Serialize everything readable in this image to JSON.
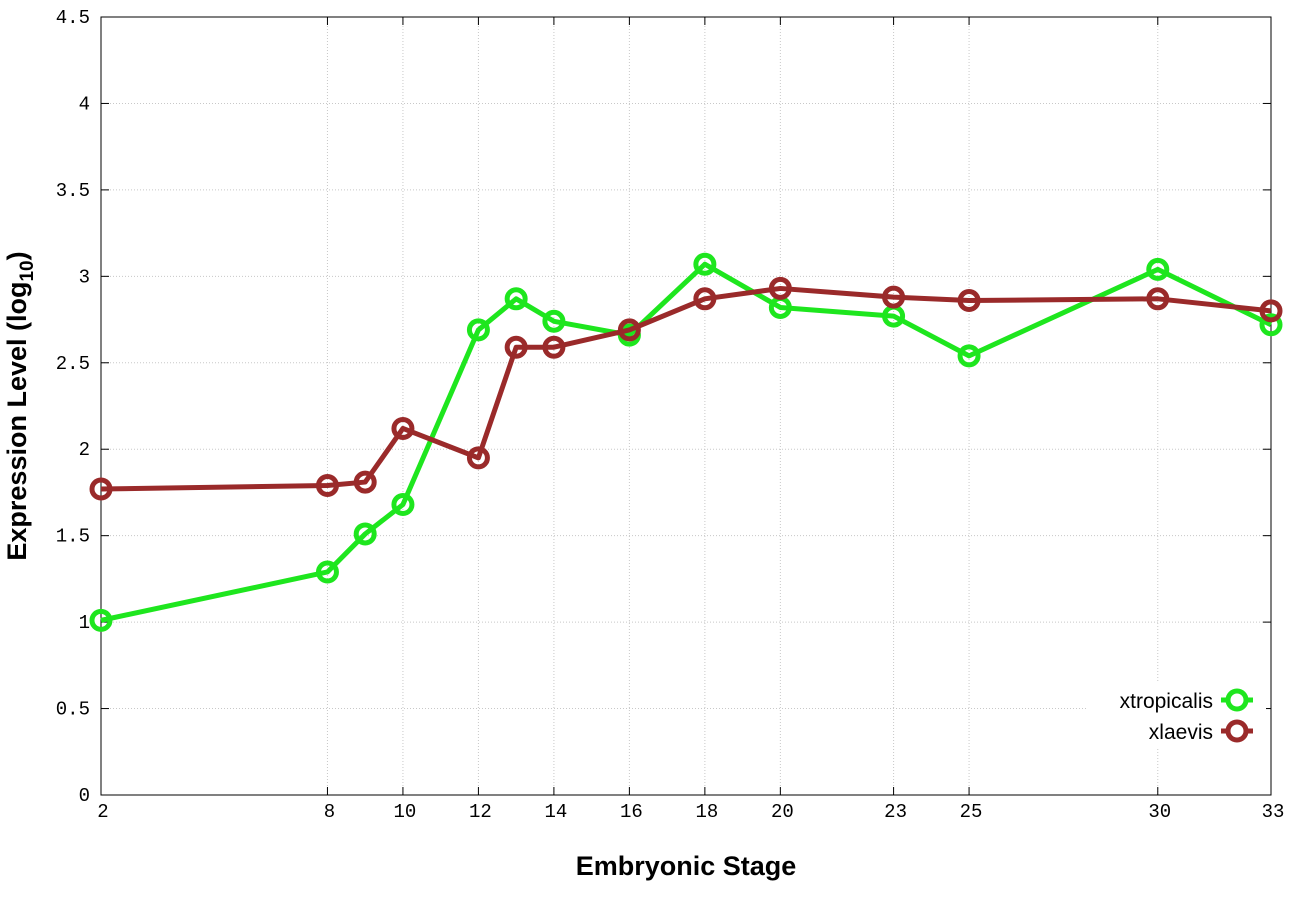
{
  "chart_data": {
    "type": "line",
    "xlabel": "Embryonic Stage",
    "ylabel_main": "Expression Level (log",
    "ylabel_sub": "10",
    "ylabel_close": ")",
    "x_ticks": [
      {
        "value": 2,
        "label": "2"
      },
      {
        "value": 8,
        "label": "8"
      },
      {
        "value": 10,
        "label": "10"
      },
      {
        "value": 12,
        "label": "12"
      },
      {
        "value": 14,
        "label": "14"
      },
      {
        "value": 16,
        "label": "16"
      },
      {
        "value": 18,
        "label": "18"
      },
      {
        "value": 20,
        "label": "20"
      },
      {
        "value": 23,
        "label": "23"
      },
      {
        "value": 25,
        "label": "25"
      },
      {
        "value": 30,
        "label": "30"
      },
      {
        "value": 33,
        "label": "33"
      }
    ],
    "y_ticks": [
      {
        "value": 0,
        "label": "0"
      },
      {
        "value": 0.5,
        "label": "0.5"
      },
      {
        "value": 1,
        "label": "1"
      },
      {
        "value": 1.5,
        "label": "1.5"
      },
      {
        "value": 2,
        "label": "2"
      },
      {
        "value": 2.5,
        "label": "2.5"
      },
      {
        "value": 3,
        "label": "3"
      },
      {
        "value": 3.5,
        "label": "3.5"
      },
      {
        "value": 4,
        "label": "4"
      },
      {
        "value": 4.5,
        "label": "4.5"
      }
    ],
    "xlim": [
      2,
      33
    ],
    "ylim": [
      0,
      4.5
    ],
    "grid": true,
    "legend_position": "bottom-right",
    "series": [
      {
        "name": "xtropicalis",
        "color": "#1ee61e",
        "x": [
          2,
          8,
          9,
          10,
          12,
          13,
          14,
          16,
          18,
          20,
          23,
          25,
          30,
          33
        ],
        "y": [
          1.01,
          1.29,
          1.51,
          1.68,
          2.69,
          2.87,
          2.74,
          2.66,
          3.07,
          2.82,
          2.77,
          2.54,
          3.04,
          2.72
        ]
      },
      {
        "name": "xlaevis",
        "color": "#9a2a2a",
        "x": [
          2,
          8,
          9,
          10,
          12,
          13,
          14,
          16,
          18,
          20,
          23,
          25,
          30,
          33
        ],
        "y": [
          1.77,
          1.79,
          1.81,
          2.12,
          1.95,
          2.59,
          2.59,
          2.69,
          2.87,
          2.93,
          2.88,
          2.86,
          2.87,
          2.8
        ]
      }
    ]
  }
}
